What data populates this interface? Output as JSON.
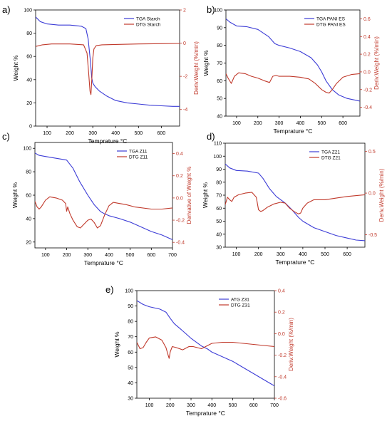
{
  "chart_data": [
    {
      "type": "line",
      "panel_label": "a)",
      "xlabel": "Temprature °C",
      "ylabel": "Weight %",
      "y2label": "Deriv.Weight (%/min)",
      "xlim": [
        50,
        680
      ],
      "ylim": [
        0,
        100
      ],
      "y2lim": [
        -5,
        2
      ],
      "xticks": [
        "100",
        "200",
        "300",
        "400",
        "500",
        "600"
      ],
      "yticks": [
        "0",
        "20",
        "40",
        "60",
        "80",
        "100"
      ],
      "y2ticks": [
        "2",
        "0",
        "-2",
        "-4"
      ],
      "legend_position": "top-right",
      "series": [
        {
          "name": "TGA Starch",
          "axis": "left",
          "color": "#3c3cd6",
          "x": [
            50,
            70,
            100,
            150,
            200,
            250,
            270,
            280,
            290,
            295,
            300,
            310,
            330,
            360,
            400,
            450,
            500,
            550,
            600,
            650,
            680
          ],
          "y": [
            94,
            90,
            88,
            87,
            87,
            86,
            84,
            75,
            55,
            42,
            37,
            34,
            30,
            26,
            22,
            20,
            19,
            18,
            17.5,
            17,
            17
          ]
        },
        {
          "name": "DTG Starch",
          "axis": "right",
          "color": "#c0392b",
          "x": [
            50,
            80,
            120,
            200,
            260,
            275,
            282,
            288,
            292,
            296,
            300,
            305,
            315,
            340,
            400,
            500,
            600,
            680
          ],
          "y": [
            -0.2,
            -0.1,
            -0.05,
            -0.05,
            -0.1,
            -0.6,
            -1.8,
            -2.9,
            -3.1,
            -2.1,
            -0.9,
            -0.35,
            -0.15,
            -0.1,
            -0.08,
            -0.05,
            -0.03,
            -0.02
          ]
        }
      ]
    },
    {
      "type": "line",
      "panel_label": "b)",
      "xlabel": "Temprature °C",
      "ylabel": "Weight %",
      "y2label": "Deriv.Weight (%/min)",
      "xlim": [
        50,
        680
      ],
      "ylim": [
        40,
        100
      ],
      "y2lim": [
        -0.5,
        0.7
      ],
      "xticks": [
        "100",
        "200",
        "300",
        "400",
        "500",
        "600"
      ],
      "yticks": [
        "40",
        "50",
        "60",
        "70",
        "80",
        "90",
        "100"
      ],
      "y2ticks": [
        "0.6",
        "0.4",
        "0.2",
        "0.0",
        "-0.2",
        "-0.4"
      ],
      "legend_position": "top-right",
      "series": [
        {
          "name": "TGA PANI ES",
          "axis": "left",
          "color": "#3c3cd6",
          "x": [
            50,
            70,
            100,
            150,
            200,
            250,
            280,
            300,
            350,
            400,
            450,
            480,
            500,
            520,
            550,
            580,
            620,
            680
          ],
          "y": [
            95,
            93,
            91,
            90.5,
            89,
            85,
            81,
            80,
            78.5,
            76.5,
            73,
            69,
            65,
            60,
            55,
            52,
            50,
            48.5
          ]
        },
        {
          "name": "DTG PANI ES",
          "axis": "right",
          "color": "#c0392b",
          "x": [
            50,
            60,
            75,
            90,
            110,
            140,
            170,
            200,
            230,
            255,
            270,
            285,
            300,
            350,
            400,
            440,
            470,
            500,
            520,
            535,
            550,
            570,
            600,
            640,
            680
          ],
          "y": [
            -0.02,
            -0.07,
            -0.13,
            -0.05,
            -0.01,
            -0.02,
            -0.05,
            -0.07,
            -0.1,
            -0.12,
            -0.05,
            -0.04,
            -0.05,
            -0.05,
            -0.06,
            -0.08,
            -0.13,
            -0.2,
            -0.23,
            -0.24,
            -0.2,
            -0.13,
            -0.06,
            -0.03,
            -0.02
          ]
        }
      ]
    },
    {
      "type": "line",
      "panel_label": "c)",
      "xlabel": "Temprature °C",
      "ylabel": "Weight %",
      "y2label": "Derivative of Weight %",
      "xlim": [
        50,
        700
      ],
      "ylim": [
        15,
        105
      ],
      "y2lim": [
        -0.45,
        0.5
      ],
      "xticks": [
        "100",
        "200",
        "300",
        "400",
        "500",
        "600",
        "700"
      ],
      "yticks": [
        "20",
        "40",
        "60",
        "80",
        "100"
      ],
      "y2ticks": [
        "0.4",
        "0.2",
        "0.0",
        "-0.2",
        "-0.4"
      ],
      "legend_position": "top-right",
      "series": [
        {
          "name": "TGA Z11",
          "axis": "left",
          "color": "#3c3cd6",
          "x": [
            50,
            70,
            100,
            150,
            200,
            230,
            260,
            300,
            330,
            360,
            380,
            400,
            450,
            500,
            550,
            600,
            650,
            700
          ],
          "y": [
            96,
            94,
            93,
            91.5,
            90,
            83,
            72,
            60,
            52,
            46,
            44,
            42.5,
            40,
            37,
            33,
            29,
            26,
            22
          ]
        },
        {
          "name": "DTG Z11",
          "axis": "right",
          "color": "#c0392b",
          "x": [
            50,
            60,
            70,
            80,
            100,
            120,
            150,
            180,
            195,
            200,
            205,
            215,
            230,
            250,
            265,
            280,
            300,
            315,
            330,
            345,
            360,
            380,
            400,
            420,
            450,
            480,
            520,
            600,
            650,
            700
          ],
          "y": [
            -0.03,
            -0.08,
            -0.1,
            -0.08,
            -0.02,
            0.01,
            0.0,
            -0.02,
            -0.05,
            -0.12,
            -0.08,
            -0.14,
            -0.2,
            -0.26,
            -0.27,
            -0.24,
            -0.2,
            -0.19,
            -0.22,
            -0.27,
            -0.25,
            -0.15,
            -0.07,
            -0.04,
            -0.05,
            -0.06,
            -0.08,
            -0.1,
            -0.1,
            -0.09
          ]
        }
      ]
    },
    {
      "type": "line",
      "panel_label": "d)",
      "xlabel": "Temprature °C",
      "ylabel": "Weight %",
      "y2label": "Deriv.Weight (%/min)",
      "xlim": [
        50,
        680
      ],
      "ylim": [
        30,
        110
      ],
      "y2lim": [
        -0.65,
        0.6
      ],
      "xticks": [
        "100",
        "200",
        "300",
        "400",
        "500",
        "600"
      ],
      "yticks": [
        "30",
        "40",
        "50",
        "60",
        "70",
        "80",
        "90",
        "100",
        "110"
      ],
      "y2ticks": [
        "0.5",
        "0.0",
        "-0.5"
      ],
      "legend_position": "top-right",
      "series": [
        {
          "name": "TGA Z21",
          "axis": "left",
          "color": "#3c3cd6",
          "x": [
            50,
            70,
            100,
            150,
            200,
            220,
            250,
            280,
            320,
            350,
            380,
            400,
            450,
            500,
            550,
            600,
            640,
            680
          ],
          "y": [
            94,
            91,
            89,
            88.5,
            87,
            83,
            75,
            69,
            64,
            59,
            53,
            50,
            45,
            42,
            39,
            37,
            35.5,
            35
          ]
        },
        {
          "name": "DTG Z21",
          "axis": "right",
          "color": "#c0392b",
          "x": [
            50,
            60,
            70,
            80,
            90,
            110,
            140,
            170,
            190,
            200,
            210,
            220,
            240,
            270,
            300,
            320,
            340,
            360,
            380,
            390,
            400,
            420,
            450,
            500,
            550,
            600,
            680
          ],
          "y": [
            -0.14,
            -0.05,
            -0.08,
            -0.1,
            -0.05,
            -0.02,
            0.0,
            0.01,
            -0.05,
            -0.2,
            -0.22,
            -0.21,
            -0.17,
            -0.13,
            -0.11,
            -0.12,
            -0.18,
            -0.22,
            -0.25,
            -0.24,
            -0.18,
            -0.12,
            -0.08,
            -0.08,
            -0.06,
            -0.04,
            -0.02
          ]
        }
      ]
    },
    {
      "type": "line",
      "panel_label": "e)",
      "xlabel": "Temprature °C",
      "ylabel": "Weight %",
      "y2label": "Deriv.Weight (%/min)",
      "xlim": [
        40,
        700
      ],
      "ylim": [
        30,
        100
      ],
      "y2lim": [
        -0.6,
        0.4
      ],
      "xticks": [
        "100",
        "200",
        "300",
        "400",
        "500",
        "600",
        "700"
      ],
      "yticks": [
        "30",
        "40",
        "50",
        "60",
        "70",
        "80",
        "90",
        "100"
      ],
      "y2ticks": [
        "0.4",
        "0.2",
        "0.0",
        "-0.2",
        "-0.4",
        "-0.6"
      ],
      "legend_position": "top-right",
      "series": [
        {
          "name": "ATG Z31",
          "axis": "left",
          "color": "#3c3cd6",
          "x": [
            40,
            70,
            100,
            150,
            180,
            200,
            220,
            250,
            300,
            350,
            380,
            400,
            450,
            500,
            550,
            600,
            650,
            700
          ],
          "y": [
            93.5,
            91,
            89.5,
            88,
            86,
            82,
            78.5,
            75,
            69,
            64,
            62,
            60,
            57,
            54,
            50,
            46,
            42,
            38
          ]
        },
        {
          "name": "DTG Z31",
          "axis": "right",
          "color": "#c0392b",
          "x": [
            40,
            55,
            70,
            85,
            100,
            130,
            160,
            180,
            190,
            195,
            200,
            210,
            230,
            260,
            290,
            310,
            330,
            350,
            380,
            400,
            450,
            500,
            550,
            600,
            650,
            700
          ],
          "y": [
            -0.08,
            -0.14,
            -0.13,
            -0.08,
            -0.04,
            -0.03,
            -0.06,
            -0.13,
            -0.2,
            -0.23,
            -0.17,
            -0.12,
            -0.13,
            -0.15,
            -0.12,
            -0.12,
            -0.13,
            -0.14,
            -0.11,
            -0.09,
            -0.08,
            -0.08,
            -0.09,
            -0.1,
            -0.11,
            -0.12
          ]
        }
      ]
    }
  ]
}
